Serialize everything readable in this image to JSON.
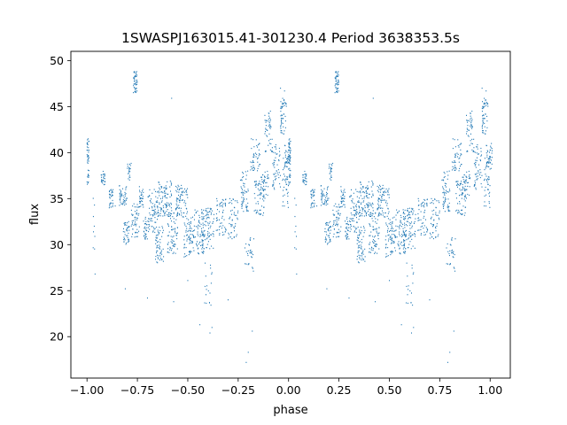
{
  "chart_data": {
    "type": "scatter",
    "title": "1SWASPJ163015.41-301230.4 Period 3638353.5s",
    "xlabel": "phase",
    "ylabel": "flux",
    "xlim": [
      -1.08,
      1.1
    ],
    "ylim": [
      15.5,
      51.0
    ],
    "x_ticks": [
      -1.0,
      -0.75,
      -0.5,
      -0.25,
      0.0,
      0.25,
      0.5,
      0.75,
      1.0
    ],
    "x_tick_labels": [
      "−1.00",
      "−0.75",
      "−0.50",
      "−0.25",
      "0.00",
      "0.25",
      "0.50",
      "0.75",
      "1.00"
    ],
    "y_ticks": [
      20,
      25,
      30,
      35,
      40,
      45,
      50
    ],
    "y_tick_labels": [
      "20",
      "25",
      "30",
      "35",
      "40",
      "45",
      "50"
    ],
    "grid": false,
    "legend": "none",
    "marker_color": "#1f77b4",
    "phase_fold": "data repeated at phase and phase + 1",
    "clusters": [
      {
        "phase": [
          -1.0,
          -0.99
        ],
        "flux": [
          36.5,
          41.5
        ],
        "n": 40
      },
      {
        "phase": [
          -0.97,
          -0.96
        ],
        "flux": [
          28.0,
          35.5
        ],
        "n": 8
      },
      {
        "phase": [
          -0.93,
          -0.91
        ],
        "flux": [
          36.5,
          38.0
        ],
        "n": 25
      },
      {
        "phase": [
          -0.89,
          -0.87
        ],
        "flux": [
          34.0,
          36.0
        ],
        "n": 30
      },
      {
        "phase": [
          -0.84,
          -0.8
        ],
        "flux": [
          34.0,
          36.5
        ],
        "n": 45
      },
      {
        "phase": [
          -0.82,
          -0.79
        ],
        "flux": [
          30.0,
          32.5
        ],
        "n": 40
      },
      {
        "phase": [
          -0.8,
          -0.78
        ],
        "flux": [
          37.0,
          39.0
        ],
        "n": 20
      },
      {
        "phase": [
          -0.78,
          -0.74
        ],
        "flux": [
          30.5,
          34.5
        ],
        "n": 50
      },
      {
        "phase": [
          -0.77,
          -0.75
        ],
        "flux": [
          46.5,
          48.8
        ],
        "n": 45
      },
      {
        "phase": [
          -0.74,
          -0.72
        ],
        "flux": [
          34.0,
          36.0
        ],
        "n": 30
      },
      {
        "phase": [
          -0.72,
          -0.7
        ],
        "flux": [
          30.5,
          33.0
        ],
        "n": 30
      },
      {
        "phase": [
          -0.7,
          -0.65
        ],
        "flux": [
          31.0,
          36.0
        ],
        "n": 70
      },
      {
        "phase": [
          -0.66,
          -0.62
        ],
        "flux": [
          28.0,
          32.0
        ],
        "n": 55
      },
      {
        "phase": [
          -0.65,
          -0.58
        ],
        "flux": [
          33.0,
          37.0
        ],
        "n": 110
      },
      {
        "phase": [
          -0.6,
          -0.55
        ],
        "flux": [
          29.0,
          33.5
        ],
        "n": 70
      },
      {
        "phase": [
          -0.56,
          -0.5
        ],
        "flux": [
          33.0,
          36.5
        ],
        "n": 80
      },
      {
        "phase": [
          -0.52,
          -0.47
        ],
        "flux": [
          28.5,
          33.0
        ],
        "n": 70
      },
      {
        "phase": [
          -0.47,
          -0.42
        ],
        "flux": [
          29.0,
          34.0
        ],
        "n": 75
      },
      {
        "phase": [
          -0.43,
          -0.37
        ],
        "flux": [
          29.5,
          34.0
        ],
        "n": 80
      },
      {
        "phase": [
          -0.42,
          -0.38
        ],
        "flux": [
          23.0,
          28.0
        ],
        "n": 18
      },
      {
        "phase": [
          -0.36,
          -0.31
        ],
        "flux": [
          31.0,
          35.0
        ],
        "n": 55
      },
      {
        "phase": [
          -0.3,
          -0.25
        ],
        "flux": [
          30.5,
          35.0
        ],
        "n": 50
      },
      {
        "phase": [
          -0.24,
          -0.2
        ],
        "flux": [
          33.5,
          38.0
        ],
        "n": 55
      },
      {
        "phase": [
          -0.22,
          -0.17
        ],
        "flux": [
          27.0,
          31.0
        ],
        "n": 30
      },
      {
        "phase": [
          -0.19,
          -0.14
        ],
        "flux": [
          38.0,
          41.5
        ],
        "n": 45
      },
      {
        "phase": [
          -0.17,
          -0.12
        ],
        "flux": [
          33.0,
          37.0
        ],
        "n": 55
      },
      {
        "phase": [
          -0.14,
          -0.1
        ],
        "flux": [
          35.0,
          38.0
        ],
        "n": 40
      },
      {
        "phase": [
          -0.12,
          -0.08
        ],
        "flux": [
          40.0,
          44.5
        ],
        "n": 45
      },
      {
        "phase": [
          -0.08,
          -0.04
        ],
        "flux": [
          36.0,
          41.0
        ],
        "n": 50
      },
      {
        "phase": [
          -0.04,
          -0.01
        ],
        "flux": [
          42.0,
          46.0
        ],
        "n": 50
      },
      {
        "phase": [
          -0.03,
          0.0
        ],
        "flux": [
          33.5,
          39.5
        ],
        "n": 45
      },
      {
        "phase": [
          -0.02,
          0.01
        ],
        "flux": [
          38.0,
          41.0
        ],
        "n": 35
      }
    ],
    "sparse_points": [
      {
        "phase": -0.96,
        "flux": 26.8
      },
      {
        "phase": -0.86,
        "flux": 34.2
      },
      {
        "phase": -0.81,
        "flux": 25.2
      },
      {
        "phase": -0.74,
        "flux": 36.3
      },
      {
        "phase": -0.7,
        "flux": 24.2
      },
      {
        "phase": -0.58,
        "flux": 45.9
      },
      {
        "phase": -0.57,
        "flux": 23.8
      },
      {
        "phase": -0.5,
        "flux": 26.1
      },
      {
        "phase": -0.44,
        "flux": 21.3
      },
      {
        "phase": -0.39,
        "flux": 20.4
      },
      {
        "phase": -0.38,
        "flux": 21.0
      },
      {
        "phase": -0.3,
        "flux": 24.0
      },
      {
        "phase": -0.21,
        "flux": 17.2
      },
      {
        "phase": -0.2,
        "flux": 18.3
      },
      {
        "phase": -0.18,
        "flux": 20.6
      },
      {
        "phase": -0.09,
        "flux": 44.5
      },
      {
        "phase": -0.04,
        "flux": 47.0
      },
      {
        "phase": -0.02,
        "flux": 46.7
      }
    ]
  }
}
